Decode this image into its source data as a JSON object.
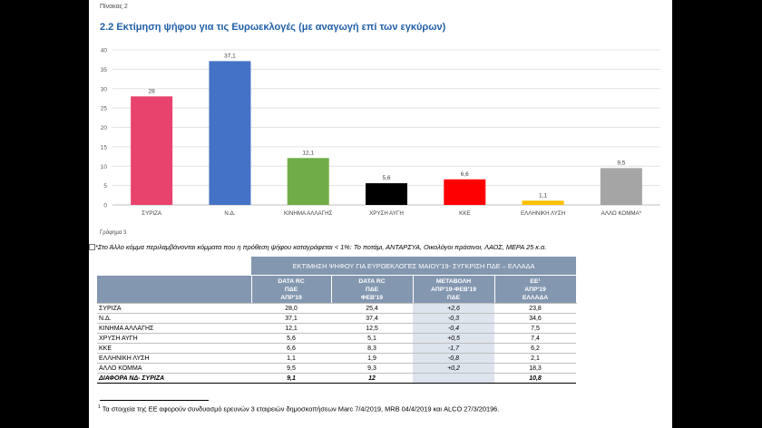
{
  "page": {
    "table_caption": "Πίνακας 2",
    "section_title": "2.2   Εκτίμηση ψήφου για τις Ευρωεκλογές (με αναγωγή επί των εγκύρων)",
    "graph_caption": "Γράφημα 3",
    "note_other": "*Στο Άλλο κόμμα περιλαμβάνονται κόμματα που η πρόθεση ψήφου καταγράφεται < 1%: Το ποτάμι, ΑΝΤΑΡΣΥΑ, Οικολόγοι πράσινοι, ΛΑΟΣ, ΜΕΡΑ 25 κ.α.",
    "footnote_marker": "1",
    "footnote_text": " Τα στοιχεία της ΕΕ αφορούν συνδυασμό ερευνών 3 εταιρειών δημοσκοπήσεων Marc 7/4/2019, MRB 04/4/2019 και ALCO 27/3/20196."
  },
  "chart_data": {
    "type": "bar",
    "categories": [
      "ΣΥΡΙΖΑ",
      "Ν.Δ.",
      "ΚΙΝΗΜΑ ΑΛΛΑΓΗΣ",
      "ΧΡΥΣΗ ΑΥΓΗ",
      "ΚΚΕ",
      "ΕΛΛΗΝΙΚΗ ΛΥΣΗ",
      "ΑΛΛΟ ΚΟΜΜΑ*"
    ],
    "values": [
      28,
      37.1,
      12.1,
      5.6,
      6.6,
      1.1,
      9.5
    ],
    "value_labels": [
      "28",
      "37,1",
      "12,1",
      "5,6",
      "6,6",
      "1,1",
      "9,5"
    ],
    "colors": [
      "#e8436d",
      "#4472c4",
      "#70ad47",
      "#000000",
      "#ff0000",
      "#ffc000",
      "#a5a5a5"
    ],
    "ylim": [
      0,
      40
    ],
    "yticks": [
      "0",
      "5",
      "10",
      "15",
      "20",
      "25",
      "30",
      "35",
      "40"
    ],
    "grid": true,
    "legend": "none"
  },
  "table": {
    "title": "ΕΚΤΙΜΗΣΗ ΨΗΦΟΥ ΓΙΑ ΕΥΡΩΕΚΛΟΓΕΣ ΜΑΙΟΥ'19- ΣΥΓΚΡΙΣΗ ΠΔΕ – ΕΛΛΑΔΑ",
    "columns": [
      [
        "DATA RC",
        "ΠΔΕ",
        "ΑΠΡ'19"
      ],
      [
        "DATA RC",
        "ΠΔΕ",
        "ΦΕΒ'19"
      ],
      [
        "ΜΕΤΑΒΟΛΗ",
        "ΑΠΡ'19-ΦΕΒ'19",
        "ΠΔΕ"
      ],
      [
        "ΕΕ¹",
        "ΑΠΡ'19",
        "ΕΛΛΑΔΑ"
      ]
    ],
    "rows": [
      {
        "party": "ΣΥΡΙΖΑ",
        "apr": "28,0",
        "feb": "25,4",
        "change": "+2,6",
        "ee": "23,8"
      },
      {
        "party": "Ν.Δ.",
        "apr": "37,1",
        "feb": "37,4",
        "change": "-0,3",
        "ee": "34,6"
      },
      {
        "party": "ΚΙΝΗΜΑ ΑΛΛΑΓΗΣ",
        "apr": "12,1",
        "feb": "12,5",
        "change": "-0,4",
        "ee": "7,5"
      },
      {
        "party": "ΧΡΥΣΗ ΑΥΓΗ",
        "apr": "5,6",
        "feb": "5,1",
        "change": "+0,5",
        "ee": "7,4"
      },
      {
        "party": "ΚΚΕ",
        "apr": "6,6",
        "feb": "8,3",
        "change": "-1,7",
        "ee": "6,2"
      },
      {
        "party": "ΕΛΛΗΝΙΚΗ ΛΥΣΗ",
        "apr": "1,1",
        "feb": "1,9",
        "change": "-0,8",
        "ee": "2,1"
      },
      {
        "party": "ΑΛΛΟ ΚΟΜΜΑ",
        "apr": "9,5",
        "feb": "9,3",
        "change": "+0,2",
        "ee": "18,3"
      }
    ],
    "diff_row": {
      "party": "ΔΙΑΦΟΡΑ ΝΔ- ΣΥΡΙΖΑ",
      "apr": "9,1",
      "feb": "12",
      "change": "",
      "ee": "10,8"
    }
  }
}
